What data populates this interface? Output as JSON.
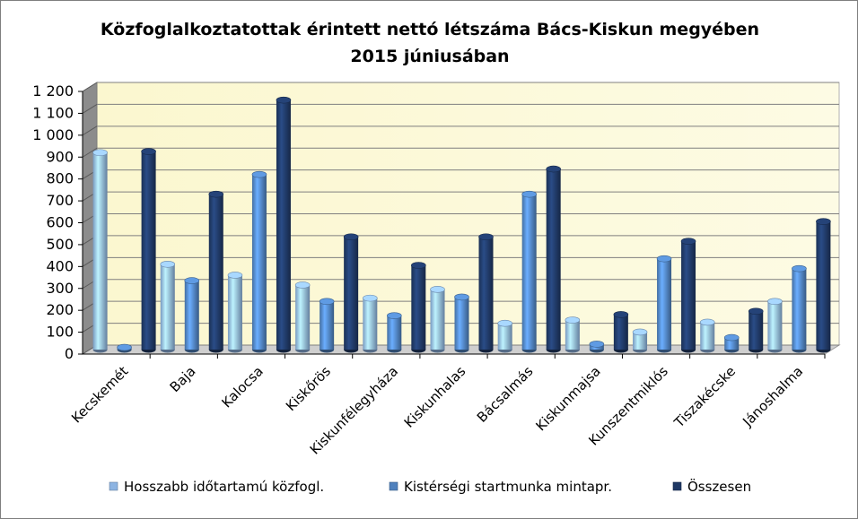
{
  "chart_data": {
    "type": "bar",
    "title": "Közfoglalkoztatottak érintett nettó létszáma Bács-Kiskun megyében",
    "subtitle": "2015 júniusában",
    "xlabel": "",
    "ylabel": "",
    "ylim": [
      0,
      1200
    ],
    "y_tick_step": 100,
    "y_tick_labels": [
      "0",
      "100",
      "200",
      "300",
      "400",
      "500",
      "600",
      "700",
      "800",
      "900",
      "1 000",
      "1 100",
      "1 200"
    ],
    "grid": true,
    "legend_position": "bottom",
    "categories": [
      "Kecskemét",
      "Baja",
      "Kalocsa",
      "Kiskőrös",
      "Kiskunfélegyháza",
      "Kiskunhalas",
      "Bácsalmás",
      "Kiskunmajsa",
      "Kunszentmiklós",
      "Tiszakécske",
      "Jánoshalma"
    ],
    "series": [
      {
        "name": "Hosszabb időtartamú közfogl.",
        "color": "#8db4e2",
        "values": [
          900,
          390,
          340,
          295,
          235,
          275,
          120,
          135,
          80,
          125,
          220
        ]
      },
      {
        "name": "Kistérségi startmunka mintapr.",
        "color": "#4f81bd",
        "values": [
          10,
          315,
          800,
          220,
          155,
          240,
          710,
          25,
          415,
          55,
          370
        ]
      },
      {
        "name": "Összesen",
        "color": "#1f3864",
        "values": [
          905,
          710,
          1140,
          515,
          385,
          515,
          825,
          160,
          495,
          175,
          585
        ]
      }
    ]
  }
}
